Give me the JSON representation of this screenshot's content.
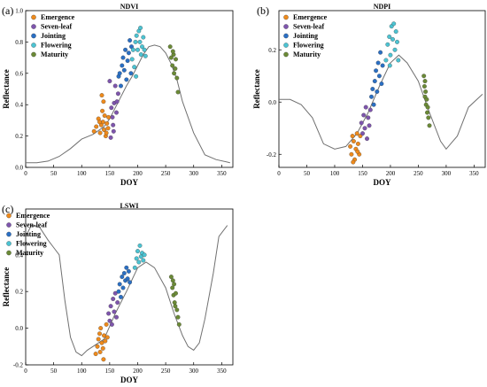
{
  "colors": {
    "Emergence": "#ee8a1c",
    "Seven-leaf": "#7e55ad",
    "Jointing": "#2a6fc4",
    "Flowering": "#4cc3d2",
    "Maturity": "#6b8a36",
    "curve": "#707070"
  },
  "chart_data": [
    {
      "type": "scatter",
      "panel_label": "(a)",
      "title": "NDVI",
      "xlabel": "DOY",
      "ylabel": "Reflectance",
      "xlim": [
        0,
        370
      ],
      "ylim": [
        0,
        1.0
      ],
      "xticks": [
        0,
        50,
        100,
        150,
        200,
        250,
        300,
        350
      ],
      "yticks": [
        0.0,
        0.2,
        0.4,
        0.6,
        0.8,
        1.0
      ],
      "ytick_labels": [
        "0.0",
        "0.2",
        "0.4",
        "0.6",
        "0.8",
        "1.0"
      ],
      "legend": [
        "Emergence",
        "Seven-leaf",
        "Jointing",
        "Flowering",
        "Maturity"
      ],
      "legend_position": "top-left",
      "curve": {
        "x": [
          0,
          20,
          40,
          60,
          80,
          100,
          120,
          140,
          150,
          160,
          170,
          180,
          190,
          200,
          210,
          220,
          230,
          240,
          250,
          260,
          270,
          280,
          300,
          320,
          340,
          365
        ],
        "y": [
          0.03,
          0.03,
          0.04,
          0.07,
          0.12,
          0.18,
          0.21,
          0.26,
          0.31,
          0.38,
          0.45,
          0.52,
          0.58,
          0.65,
          0.72,
          0.77,
          0.78,
          0.77,
          0.73,
          0.66,
          0.56,
          0.42,
          0.22,
          0.08,
          0.05,
          0.03
        ]
      },
      "series": [
        {
          "name": "Emergence",
          "points": [
            [
              122,
              0.23
            ],
            [
              126,
              0.26
            ],
            [
              130,
              0.31
            ],
            [
              133,
              0.22
            ],
            [
              135,
              0.27
            ],
            [
              137,
              0.36
            ],
            [
              138,
              0.29
            ],
            [
              140,
              0.24
            ],
            [
              141,
              0.33
            ],
            [
              143,
              0.2
            ],
            [
              145,
              0.28
            ],
            [
              147,
              0.25
            ],
            [
              148,
              0.32
            ],
            [
              136,
              0.46
            ],
            [
              139,
              0.42
            ],
            [
              132,
              0.29
            ],
            [
              144,
              0.22
            ]
          ]
        },
        {
          "name": "Seven-leaf",
          "points": [
            [
              150,
              0.55
            ],
            [
              153,
              0.38
            ],
            [
              155,
              0.32
            ],
            [
              157,
              0.23
            ],
            [
              158,
              0.41
            ],
            [
              160,
              0.52
            ],
            [
              162,
              0.35
            ],
            [
              163,
              0.42
            ],
            [
              165,
              0.47
            ],
            [
              152,
              0.19
            ],
            [
              156,
              0.27
            ]
          ]
        },
        {
          "name": "Jointing",
          "points": [
            [
              166,
              0.58
            ],
            [
              168,
              0.6
            ],
            [
              170,
              0.52
            ],
            [
              172,
              0.65
            ],
            [
              174,
              0.7
            ],
            [
              176,
              0.62
            ],
            [
              178,
              0.75
            ],
            [
              180,
              0.56
            ],
            [
              182,
              0.68
            ],
            [
              184,
              0.73
            ],
            [
              186,
              0.81
            ],
            [
              188,
              0.6
            ],
            [
              189,
              0.77
            ]
          ]
        },
        {
          "name": "Flowering",
          "points": [
            [
              190,
              0.69
            ],
            [
              192,
              0.75
            ],
            [
              194,
              0.64
            ],
            [
              196,
              0.8
            ],
            [
              198,
              0.84
            ],
            [
              200,
              0.75
            ],
            [
              202,
              0.87
            ],
            [
              204,
              0.8
            ],
            [
              206,
              0.72
            ],
            [
              208,
              0.77
            ],
            [
              210,
              0.83
            ],
            [
              212,
              0.75
            ],
            [
              214,
              0.71
            ],
            [
              197,
              0.58
            ],
            [
              205,
              0.89
            ]
          ]
        },
        {
          "name": "Maturity",
          "points": [
            [
              258,
              0.77
            ],
            [
              260,
              0.7
            ],
            [
              262,
              0.65
            ],
            [
              264,
              0.72
            ],
            [
              265,
              0.6
            ],
            [
              267,
              0.63
            ],
            [
              268,
              0.69
            ],
            [
              270,
              0.57
            ],
            [
              272,
              0.48
            ],
            [
              263,
              0.74
            ]
          ]
        }
      ]
    },
    {
      "type": "scatter",
      "panel_label": "(b)",
      "title": "NDPI",
      "xlabel": "DOY",
      "ylabel": "Reflectance",
      "xlim": [
        0,
        370
      ],
      "ylim": [
        -0.25,
        0.35
      ],
      "xticks": [
        0,
        50,
        100,
        150,
        200,
        250,
        300,
        350
      ],
      "yticks": [
        -0.2,
        0.0,
        0.2
      ],
      "ytick_labels": [
        "-0.2",
        "0.0",
        "0.2"
      ],
      "legend": [
        "Emergence",
        "Seven-leaf",
        "Jointing",
        "Flowering",
        "Maturity"
      ],
      "legend_position": "top-left",
      "curve": {
        "x": [
          0,
          20,
          40,
          60,
          80,
          100,
          120,
          140,
          160,
          180,
          200,
          215,
          230,
          250,
          270,
          290,
          300,
          320,
          340,
          365
        ],
        "y": [
          0.01,
          0.01,
          -0.01,
          -0.06,
          -0.16,
          -0.18,
          -0.17,
          -0.12,
          -0.04,
          0.06,
          0.15,
          0.18,
          0.15,
          0.08,
          -0.04,
          -0.15,
          -0.18,
          -0.13,
          -0.02,
          0.03
        ]
      },
      "series": [
        {
          "name": "Emergence",
          "points": [
            [
              128,
              -0.17
            ],
            [
              130,
              -0.2
            ],
            [
              132,
              -0.13
            ],
            [
              134,
              -0.15
            ],
            [
              136,
              -0.22
            ],
            [
              138,
              -0.18
            ],
            [
              140,
              -0.12
            ],
            [
              142,
              -0.16
            ],
            [
              144,
              -0.2
            ],
            [
              146,
              -0.13
            ],
            [
              133,
              -0.23
            ],
            [
              141,
              -0.19
            ]
          ]
        },
        {
          "name": "Seven-leaf",
          "points": [
            [
              148,
              -0.08
            ],
            [
              150,
              -0.12
            ],
            [
              152,
              -0.05
            ],
            [
              154,
              -0.1
            ],
            [
              156,
              -0.02
            ],
            [
              158,
              -0.14
            ],
            [
              160,
              -0.06
            ],
            [
              162,
              -0.09
            ],
            [
              164,
              -0.03
            ]
          ]
        },
        {
          "name": "Jointing",
          "points": [
            [
              166,
              0.02
            ],
            [
              168,
              0.05
            ],
            [
              170,
              -0.01
            ],
            [
              172,
              0.08
            ],
            [
              174,
              0.12
            ],
            [
              176,
              0.04
            ],
            [
              178,
              0.15
            ],
            [
              180,
              0.1
            ],
            [
              182,
              0.19
            ],
            [
              184,
              0.07
            ],
            [
              186,
              0.14
            ]
          ]
        },
        {
          "name": "Flowering",
          "points": [
            [
              192,
              0.16
            ],
            [
              195,
              0.22
            ],
            [
              198,
              0.25
            ],
            [
              200,
              0.18
            ],
            [
              202,
              0.29
            ],
            [
              204,
              0.24
            ],
            [
              206,
              0.3
            ],
            [
              208,
              0.2
            ],
            [
              210,
              0.27
            ],
            [
              212,
              0.23
            ],
            [
              214,
              0.16
            ],
            [
              199,
              0.14
            ]
          ]
        },
        {
          "name": "Maturity",
          "points": [
            [
              260,
              0.1
            ],
            [
              261,
              0.06
            ],
            [
              262,
              0.02
            ],
            [
              263,
              0.04
            ],
            [
              264,
              -0.01
            ],
            [
              265,
              0.01
            ],
            [
              266,
              -0.04
            ],
            [
              267,
              -0.02
            ],
            [
              268,
              -0.06
            ],
            [
              270,
              -0.09
            ],
            [
              262,
              0.08
            ]
          ]
        }
      ]
    },
    {
      "type": "scatter",
      "panel_label": "(c)",
      "title": "LSWI",
      "xlabel": "DOY",
      "ylabel": "Reflectance",
      "xlim": [
        0,
        370
      ],
      "ylim": [
        -0.2,
        0.65
      ],
      "xticks": [
        0,
        50,
        100,
        150,
        200,
        250,
        300,
        350
      ],
      "yticks": [
        -0.2,
        0.0,
        0.2,
        0.4
      ],
      "ytick_labels": [
        "-0.2",
        "0.0",
        "0.2",
        "0.4"
      ],
      "legend": [
        "Emergence",
        "Seven-leaf",
        "Jointing",
        "Flowering",
        "Maturity"
      ],
      "legend_position": "top-left",
      "curve": {
        "x": [
          0,
          10,
          25,
          40,
          50,
          60,
          70,
          80,
          90,
          100,
          110,
          120,
          130,
          140,
          160,
          180,
          200,
          215,
          230,
          250,
          265,
          280,
          290,
          300,
          310,
          320,
          335,
          345,
          360
        ],
        "y": [
          0.5,
          0.56,
          0.55,
          0.48,
          0.44,
          0.4,
          0.15,
          -0.05,
          -0.13,
          -0.15,
          -0.12,
          -0.1,
          -0.08,
          -0.06,
          0.08,
          0.2,
          0.33,
          0.36,
          0.33,
          0.22,
          0.08,
          -0.04,
          -0.1,
          -0.12,
          -0.08,
          0.05,
          0.3,
          0.5,
          0.56
        ]
      },
      "series": [
        {
          "name": "Emergence",
          "points": [
            [
              125,
              -0.14
            ],
            [
              128,
              -0.1
            ],
            [
              130,
              -0.06
            ],
            [
              132,
              -0.03
            ],
            [
              134,
              0.0
            ],
            [
              136,
              -0.08
            ],
            [
              138,
              -0.11
            ],
            [
              140,
              -0.04
            ],
            [
              142,
              -0.07
            ],
            [
              144,
              0.02
            ],
            [
              146,
              -0.05
            ],
            [
              133,
              -0.13
            ],
            [
              139,
              -0.17
            ]
          ]
        },
        {
          "name": "Seven-leaf",
          "points": [
            [
              148,
              0.08
            ],
            [
              150,
              0.04
            ],
            [
              152,
              0.12
            ],
            [
              154,
              0.02
            ],
            [
              156,
              0.16
            ],
            [
              158,
              0.09
            ],
            [
              160,
              0.19
            ],
            [
              162,
              0.06
            ],
            [
              164,
              0.14
            ]
          ]
        },
        {
          "name": "Jointing",
          "points": [
            [
              166,
              0.2
            ],
            [
              168,
              0.24
            ],
            [
              170,
              0.17
            ],
            [
              172,
              0.28
            ],
            [
              174,
              0.22
            ],
            [
              176,
              0.3
            ],
            [
              178,
              0.26
            ],
            [
              180,
              0.33
            ],
            [
              182,
              0.27
            ],
            [
              184,
              0.31
            ],
            [
              186,
              0.25
            ]
          ]
        },
        {
          "name": "Flowering",
          "points": [
            [
              195,
              0.33
            ],
            [
              198,
              0.38
            ],
            [
              200,
              0.42
            ],
            [
              202,
              0.36
            ],
            [
              204,
              0.45
            ],
            [
              206,
              0.39
            ],
            [
              208,
              0.41
            ],
            [
              210,
              0.37
            ],
            [
              212,
              0.4
            ]
          ]
        },
        {
          "name": "Maturity",
          "points": [
            [
              260,
              0.28
            ],
            [
              262,
              0.22
            ],
            [
              263,
              0.26
            ],
            [
              264,
              0.18
            ],
            [
              265,
              0.24
            ],
            [
              266,
              0.14
            ],
            [
              268,
              0.19
            ],
            [
              270,
              0.1
            ],
            [
              272,
              0.06
            ],
            [
              274,
              0.02
            ],
            [
              267,
              0.12
            ]
          ]
        }
      ]
    }
  ]
}
